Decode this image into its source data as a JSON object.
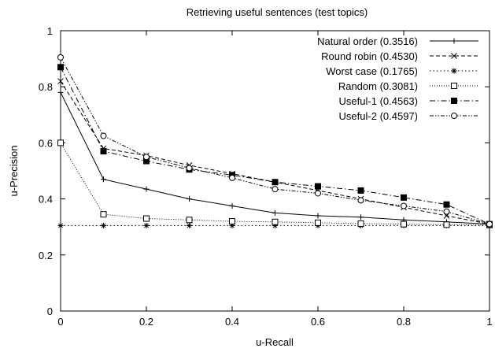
{
  "chart_data": {
    "type": "line",
    "title": "Retrieving useful sentences (test topics)",
    "xlabel": "u-Recall",
    "ylabel": "u-Precision",
    "xlim": [
      0,
      1
    ],
    "ylim": [
      0,
      1
    ],
    "x_ticks": [
      "0",
      "0.2",
      "0.4",
      "0.6",
      "0.8",
      "1"
    ],
    "y_ticks": [
      "0",
      "0.2",
      "0.4",
      "0.6",
      "0.8",
      "1"
    ],
    "grid": false,
    "legend_position": "top-right",
    "x": [
      0,
      0.1,
      0.2,
      0.3,
      0.4,
      0.5,
      0.6,
      0.7,
      0.8,
      0.9,
      1.0
    ],
    "series": [
      {
        "name": "Natural order (0.3516)",
        "marker": "plus",
        "dash": "solid",
        "values": [
          0.78,
          0.47,
          0.435,
          0.4,
          0.375,
          0.35,
          0.34,
          0.335,
          0.325,
          0.318,
          0.31
        ]
      },
      {
        "name": "Round robin (0.4530)",
        "marker": "cross",
        "dash": "dashed",
        "values": [
          0.82,
          0.58,
          0.555,
          0.52,
          0.49,
          0.46,
          0.43,
          0.4,
          0.37,
          0.34,
          0.31
        ]
      },
      {
        "name": "Worst case (0.1765)",
        "marker": "star",
        "dash": "dotted",
        "values": [
          0.305,
          0.305,
          0.305,
          0.305,
          0.305,
          0.305,
          0.305,
          0.305,
          0.305,
          0.305,
          0.305
        ]
      },
      {
        "name": "Random (0.3081)",
        "marker": "open-square",
        "dash": "fine-dotted",
        "values": [
          0.6,
          0.345,
          0.33,
          0.325,
          0.32,
          0.318,
          0.315,
          0.312,
          0.31,
          0.308,
          0.307
        ]
      },
      {
        "name": "Useful-1 (0.4563)",
        "marker": "filled-square",
        "dash": "dash-dot",
        "values": [
          0.87,
          0.57,
          0.535,
          0.505,
          0.485,
          0.46,
          0.445,
          0.43,
          0.405,
          0.38,
          0.31
        ]
      },
      {
        "name": "Useful-2 (0.4597)",
        "marker": "open-circle",
        "dash": "dash-dot-dot",
        "values": [
          0.905,
          0.625,
          0.55,
          0.51,
          0.475,
          0.435,
          0.42,
          0.395,
          0.375,
          0.355,
          0.31
        ]
      }
    ]
  }
}
